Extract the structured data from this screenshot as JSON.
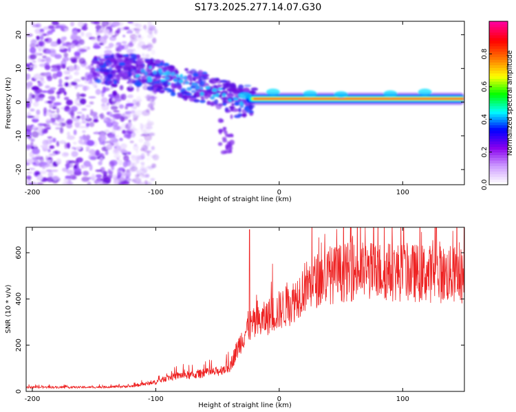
{
  "title": "S173.2025.277.14.07.G30",
  "colors": {
    "snr_line": "#ee2222",
    "frame": "#000000"
  },
  "chart_data": [
    {
      "type": "heatmap",
      "name": "spectrogram",
      "xlabel": "Height of straight line (km)",
      "ylabel": "Frequency (Hz)",
      "xlim": [
        -205,
        150
      ],
      "ylim": [
        -24.5,
        24
      ],
      "x_ticks": [
        -200,
        -100,
        0,
        100
      ],
      "y_ticks": [
        -20,
        -10,
        0,
        10,
        20
      ],
      "colorbar": {
        "label": "Normalized spectral amplitude",
        "range": [
          0,
          1
        ],
        "ticks": [
          "0.0",
          "0.2",
          "0.4",
          "0.6",
          "0.8"
        ],
        "tick_values": [
          0,
          0.2,
          0.4,
          0.6,
          0.8
        ],
        "colors": [
          "#ffffff",
          "#cc99ff",
          "#8800ee",
          "#0000ff",
          "#00ffff",
          "#00ff00",
          "#ffff00",
          "#ff7700",
          "#ff0000",
          "#ff0099"
        ]
      },
      "features": {
        "noise_region_x": [
          -205,
          -120
        ],
        "descending_track": [
          [
            -150,
            9
          ],
          [
            -120,
            10
          ],
          [
            -100,
            8
          ],
          [
            -80,
            6
          ],
          [
            -60,
            4
          ],
          [
            -45,
            2
          ],
          [
            -35,
            0
          ],
          [
            -20,
            1
          ]
        ],
        "carrier_line": {
          "x_start": -30,
          "x_end": 150,
          "frequency": 1
        }
      }
    },
    {
      "type": "line",
      "name": "snr",
      "xlabel": "Height of straight line (km)",
      "ylabel": "SNR (10 * v/v)",
      "xlim": [
        -205,
        150
      ],
      "ylim": [
        0,
        710
      ],
      "x_ticks": [
        -200,
        -100,
        0,
        100
      ],
      "y_ticks": [
        0,
        200,
        400,
        600
      ],
      "series": [
        {
          "name": "SNR",
          "envelope_x": [
            -205,
            -150,
            -120,
            -100,
            -90,
            -80,
            -70,
            -60,
            -50,
            -40,
            -30,
            -25,
            -20,
            -15,
            -10,
            0,
            10,
            20,
            30,
            40,
            60,
            80,
            100,
            120,
            140,
            150
          ],
          "envelope_y": [
            18,
            18,
            22,
            40,
            60,
            70,
            70,
            80,
            85,
            110,
            230,
            280,
            290,
            300,
            320,
            350,
            380,
            450,
            480,
            500,
            520,
            520,
            515,
            510,
            505,
            500
          ],
          "spike_x": -24,
          "spike_y": 700
        }
      ]
    }
  ]
}
